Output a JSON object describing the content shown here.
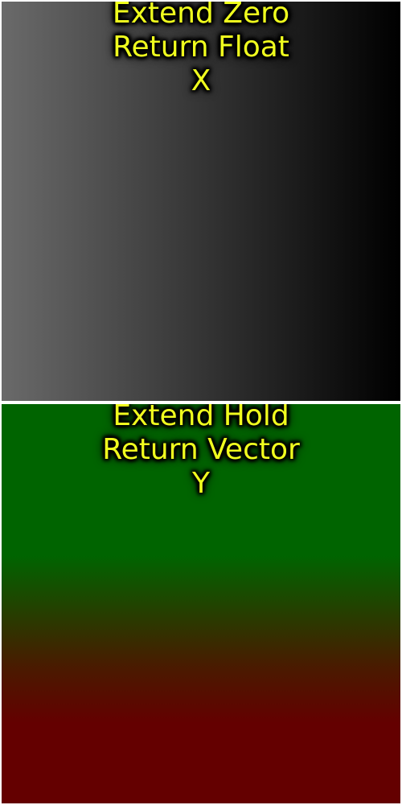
{
  "panels": [
    {
      "lines": [
        "Extend Zero",
        "Return Float",
        "X"
      ],
      "gradient_colors": [
        "#6a6a6a",
        "#000000"
      ]
    },
    {
      "lines": [
        "Extend Hold",
        "Return Vector",
        "Y"
      ],
      "gradient_colors": [
        "#006400",
        "#640000"
      ]
    }
  ],
  "text_color": "#f0ff1e"
}
